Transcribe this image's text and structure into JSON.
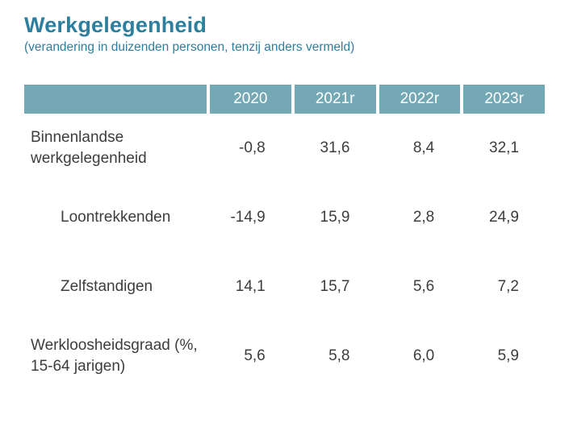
{
  "title": "Werkgelegenheid",
  "subtitle": "(verandering in duizenden personen, tenzij anders vermeld)",
  "colors": {
    "title_text": "#2e7e9e",
    "header_bg": "#74a8b4",
    "header_text": "#ffffff",
    "body_text": "#3d3d3d"
  },
  "chart_data": {
    "type": "table",
    "title": "Werkgelegenheid",
    "subtitle": "(verandering in duizenden personen, tenzij anders vermeld)",
    "columns": [
      "",
      "2020",
      "2021r",
      "2022r",
      "2023r"
    ],
    "rows": [
      {
        "label": "Binnenlandse werkgelegenheid",
        "indent": false,
        "values": [
          "-0,8",
          "31,6",
          "8,4",
          "32,1"
        ]
      },
      {
        "label": "Loontrekkenden",
        "indent": true,
        "values": [
          "-14,9",
          "15,9",
          "2,8",
          "24,9"
        ]
      },
      {
        "label": "Zelfstandigen",
        "indent": true,
        "values": [
          "14,1",
          "15,7",
          "5,6",
          "7,2"
        ]
      },
      {
        "label": "Werkloosheidsgraad (%, 15-64 jarigen)",
        "indent": false,
        "values": [
          "5,6",
          "5,8",
          "6,0",
          "5,9"
        ]
      }
    ]
  }
}
